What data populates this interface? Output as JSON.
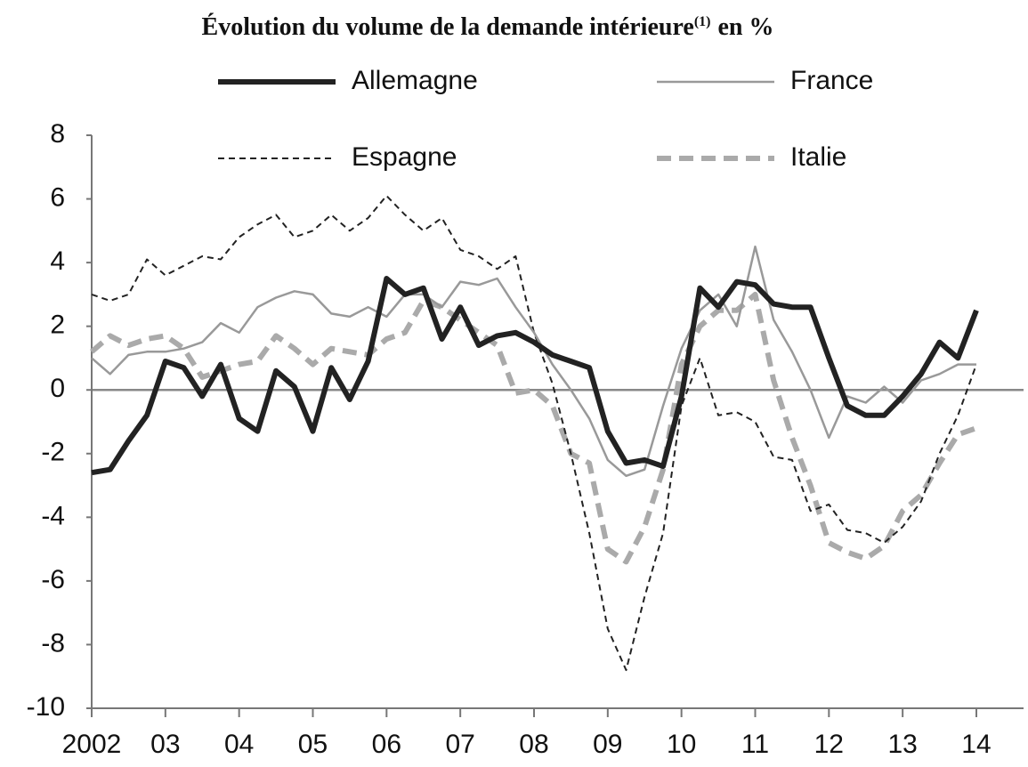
{
  "chart_data": {
    "type": "line",
    "title": {
      "text": "Évolution du volume de la demande intérieure",
      "superscript": "(1)",
      "suffix": "en %"
    },
    "x": [
      2002,
      2002.25,
      2002.5,
      2002.75,
      2003,
      2003.25,
      2003.5,
      2003.75,
      2004,
      2004.25,
      2004.5,
      2004.75,
      2005,
      2005.25,
      2005.5,
      2005.75,
      2006,
      2006.25,
      2006.5,
      2006.75,
      2007,
      2007.25,
      2007.5,
      2007.75,
      2008,
      2008.25,
      2008.5,
      2008.75,
      2009,
      2009.25,
      2009.5,
      2009.75,
      2010,
      2010.25,
      2010.5,
      2010.75,
      2011,
      2011.25,
      2011.5,
      2011.75,
      2012,
      2012.25,
      2012.5,
      2012.75,
      2013,
      2013.25,
      2013.5,
      2013.75,
      2014
    ],
    "series": [
      {
        "name": "Allemagne",
        "color": "#222222",
        "width": 6,
        "dash": "none",
        "values": [
          -2.6,
          -2.5,
          -1.6,
          -0.8,
          0.9,
          0.7,
          -0.2,
          0.8,
          -0.9,
          -1.3,
          0.6,
          0.1,
          -1.3,
          0.7,
          -0.3,
          0.9,
          3.5,
          3.0,
          3.2,
          1.6,
          2.6,
          1.4,
          1.7,
          1.8,
          1.5,
          1.1,
          0.9,
          0.7,
          -1.3,
          -2.3,
          -2.2,
          -2.4,
          -0.2,
          3.2,
          2.6,
          3.4,
          3.3,
          2.7,
          2.6,
          2.6,
          1.0,
          -0.5,
          -0.8,
          -0.8,
          -0.2,
          0.5,
          1.5,
          1.0,
          2.5
        ]
      },
      {
        "name": "France",
        "color": "#999999",
        "width": 2.5,
        "dash": "none",
        "values": [
          1.0,
          0.5,
          1.1,
          1.2,
          1.2,
          1.3,
          1.5,
          2.1,
          1.8,
          2.6,
          2.9,
          3.1,
          3.0,
          2.4,
          2.3,
          2.6,
          2.3,
          3.0,
          3.0,
          2.6,
          3.4,
          3.3,
          3.5,
          2.6,
          1.8,
          0.8,
          0.0,
          -0.9,
          -2.2,
          -2.7,
          -2.5,
          -0.5,
          1.3,
          2.5,
          3.0,
          2.0,
          4.5,
          2.2,
          1.2,
          0.0,
          -1.5,
          -0.2,
          -0.4,
          0.1,
          -0.4,
          0.3,
          0.5,
          0.8,
          0.8
        ]
      },
      {
        "name": "Espagne",
        "color": "#222222",
        "width": 2,
        "dash": "7 5",
        "values": [
          3.0,
          2.8,
          3.0,
          4.1,
          3.6,
          3.9,
          4.2,
          4.1,
          4.8,
          5.2,
          5.5,
          4.8,
          5.0,
          5.5,
          5.0,
          5.4,
          6.1,
          5.5,
          5.0,
          5.4,
          4.4,
          4.2,
          3.8,
          4.2,
          1.8,
          0.2,
          -2.0,
          -4.5,
          -7.5,
          -8.8,
          -6.5,
          -4.5,
          -0.5,
          1.0,
          -0.8,
          -0.7,
          -1.0,
          -2.1,
          -2.2,
          -3.8,
          -3.6,
          -4.4,
          -4.5,
          -4.8,
          -4.3,
          -3.5,
          -2.0,
          -0.8,
          0.8
        ]
      },
      {
        "name": "Italie",
        "color": "#aaaaaa",
        "width": 6,
        "dash": "16 9",
        "values": [
          1.2,
          1.7,
          1.4,
          1.6,
          1.7,
          1.3,
          0.4,
          0.6,
          0.8,
          0.9,
          1.7,
          1.3,
          0.8,
          1.3,
          1.2,
          1.1,
          1.6,
          1.8,
          2.8,
          2.6,
          2.2,
          1.8,
          1.4,
          -0.1,
          0.0,
          -0.5,
          -2.0,
          -2.3,
          -5.0,
          -5.4,
          -4.3,
          -2.5,
          0.8,
          2.0,
          2.5,
          2.5,
          3.0,
          0.3,
          -1.5,
          -3.0,
          -4.8,
          -5.1,
          -5.3,
          -4.9,
          -3.8,
          -3.3,
          -2.3,
          -1.4,
          -1.2
        ]
      }
    ],
    "xlim": [
      2002,
      2014.64
    ],
    "xticks": [
      2002,
      {
        "value": 2003,
        "label": "03"
      },
      {
        "value": 2004,
        "label": "04"
      },
      {
        "value": 2005,
        "label": "05"
      },
      {
        "value": 2006,
        "label": "06"
      },
      {
        "value": 2007,
        "label": "07"
      },
      {
        "value": 2008,
        "label": "08"
      },
      {
        "value": 2009,
        "label": "09"
      },
      {
        "value": 2010,
        "label": "10"
      },
      {
        "value": 2011,
        "label": "11"
      },
      {
        "value": 2012,
        "label": "12"
      },
      {
        "value": 2013,
        "label": "13"
      },
      {
        "value": 2014,
        "label": "14"
      }
    ],
    "ylim": [
      -10,
      8
    ],
    "yticks": [
      -10,
      -8,
      -6,
      -4,
      -2,
      0,
      2,
      4,
      6,
      8
    ],
    "zero_line": true
  }
}
